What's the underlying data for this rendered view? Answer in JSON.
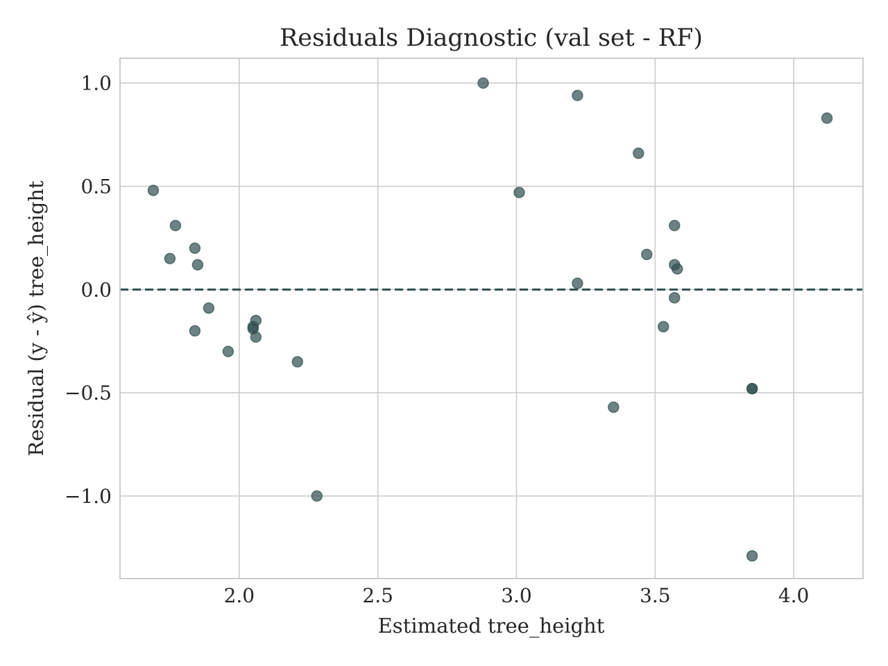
{
  "chart_data": {
    "type": "scatter",
    "title": "Residuals Diagnostic (val set - RF)",
    "xlabel": "Estimated tree_height",
    "ylabel": "Residual (y - ŷ) tree_height",
    "xlim": [
      1.57,
      4.25
    ],
    "ylim": [
      -1.4,
      1.12
    ],
    "xticks": [
      2.0,
      2.5,
      3.0,
      3.5,
      4.0
    ],
    "xtick_labels": [
      "2.0",
      "2.5",
      "3.0",
      "3.5",
      "4.0"
    ],
    "yticks": [
      1.0,
      0.5,
      0.0,
      -0.5,
      -1.0
    ],
    "ytick_labels": [
      "1.0",
      "0.5",
      "0.0",
      "−0.5",
      "−1.0"
    ],
    "grid": true,
    "reference_line": {
      "y": 0.0,
      "style": "dashed",
      "color": "#2f4f4f"
    },
    "point_color": "#2f4f4f",
    "x": [
      1.69,
      1.75,
      1.77,
      1.84,
      1.84,
      1.85,
      1.89,
      1.96,
      2.05,
      2.05,
      2.06,
      2.06,
      2.21,
      2.28,
      2.88,
      3.01,
      3.22,
      3.22,
      3.35,
      3.44,
      3.47,
      3.53,
      3.57,
      3.57,
      3.57,
      3.58,
      3.85,
      3.85,
      3.85,
      4.12
    ],
    "y": [
      0.48,
      0.15,
      0.31,
      0.2,
      -0.2,
      0.12,
      -0.09,
      -0.3,
      -0.18,
      -0.19,
      -0.15,
      -0.23,
      -0.35,
      -1.0,
      1.0,
      0.47,
      0.94,
      0.03,
      -0.57,
      0.66,
      0.17,
      -0.18,
      0.31,
      0.12,
      -0.04,
      0.1,
      -0.48,
      -0.48,
      -1.29,
      0.83
    ]
  }
}
